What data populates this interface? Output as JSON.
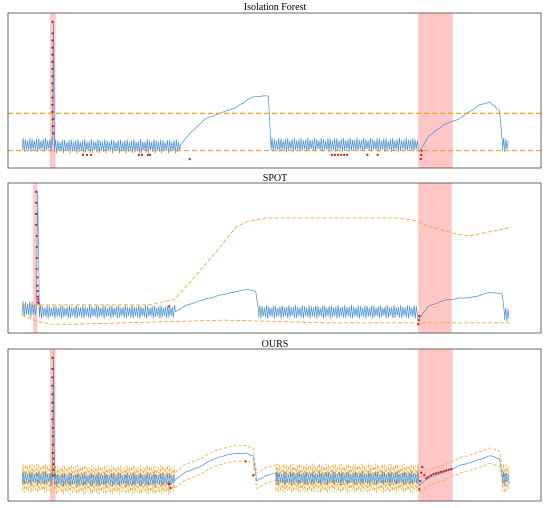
{
  "figure": {
    "titles": [
      "Isolation Forest",
      "SPOT",
      "OURS"
    ]
  },
  "colors": {
    "signal": "#4a90d0",
    "anomaly": "#c0181f",
    "threshold": "#f0a020",
    "highlight": "#ffb3b3",
    "frame": "#444444"
  },
  "chart_data": [
    {
      "type": "line",
      "title": "Isolation Forest",
      "x_range": [
        0,
        1000
      ],
      "y_range": [
        0,
        1
      ],
      "signal_segments": [
        {
          "kind": "osc",
          "x0": 0,
          "x1": 60,
          "base": 0.12,
          "amp": 0.05
        },
        {
          "kind": "spike",
          "x0": 60,
          "x1": 64,
          "base": 0.12,
          "peak": 0.98
        },
        {
          "kind": "osc",
          "x0": 64,
          "x1": 312,
          "base": 0.11,
          "amp": 0.05
        },
        {
          "kind": "ramp",
          "points": [
            [
              312,
              0.12
            ],
            [
              330,
              0.2
            ],
            [
              360,
              0.3
            ],
            [
              390,
              0.34
            ],
            [
              420,
              0.38
            ],
            [
              450,
              0.45
            ],
            [
              470,
              0.46
            ],
            [
              485,
              0.46
            ]
          ]
        },
        {
          "kind": "drop",
          "x0": 485,
          "x1": 490,
          "from": 0.46,
          "to": 0.12
        },
        {
          "kind": "osc",
          "x0": 490,
          "x1": 782,
          "base": 0.12,
          "amp": 0.05
        },
        {
          "kind": "ramp",
          "points": [
            [
              782,
              0.07
            ],
            [
              800,
              0.18
            ],
            [
              830,
              0.26
            ],
            [
              860,
              0.3
            ],
            [
              880,
              0.35
            ],
            [
              900,
              0.4
            ],
            [
              920,
              0.42
            ],
            [
              940,
              0.36
            ]
          ]
        },
        {
          "kind": "drop",
          "x0": 940,
          "x1": 946,
          "from": 0.36,
          "to": 0.12
        },
        {
          "kind": "osc",
          "x0": 946,
          "x1": 958,
          "base": 0.12,
          "amp": 0.05
        }
      ],
      "thresholds": [
        0.34,
        0.08
      ],
      "highlights": [
        [
          55,
          66
        ],
        [
          780,
          848
        ]
      ],
      "anomaly_points": [
        [
          60,
          0.98
        ],
        [
          60,
          0.9
        ],
        [
          60,
          0.85
        ],
        [
          60,
          0.8
        ],
        [
          60,
          0.75
        ],
        [
          60,
          0.7
        ],
        [
          60,
          0.65
        ],
        [
          60,
          0.6
        ],
        [
          60,
          0.55
        ],
        [
          60,
          0.5
        ],
        [
          60,
          0.45
        ],
        [
          60,
          0.4
        ],
        [
          60,
          0.35
        ],
        [
          61,
          0.3
        ],
        [
          61,
          0.25
        ],
        [
          62,
          0.2
        ],
        [
          120,
          0.05
        ],
        [
          128,
          0.05
        ],
        [
          136,
          0.05
        ],
        [
          230,
          0.05
        ],
        [
          236,
          0.05
        ],
        [
          248,
          0.05
        ],
        [
          252,
          0.05
        ],
        [
          330,
          0.02
        ],
        [
          610,
          0.05
        ],
        [
          616,
          0.05
        ],
        [
          622,
          0.05
        ],
        [
          628,
          0.05
        ],
        [
          634,
          0.05
        ],
        [
          640,
          0.05
        ],
        [
          680,
          0.05
        ],
        [
          700,
          0.05
        ],
        [
          785,
          0.02
        ],
        [
          786,
          0.05
        ],
        [
          787,
          0.08
        ]
      ]
    },
    {
      "type": "line",
      "title": "SPOT",
      "x_range": [
        0,
        1000
      ],
      "y_range": [
        0,
        1
      ],
      "signal_segments": [
        {
          "kind": "osc",
          "x0": 0,
          "x1": 28,
          "base": 0.13,
          "amp": 0.06
        },
        {
          "kind": "spike",
          "x0": 28,
          "x1": 34,
          "base": 0.13,
          "peak": 0.98
        },
        {
          "kind": "osc",
          "x0": 34,
          "x1": 302,
          "base": 0.11,
          "amp": 0.05
        },
        {
          "kind": "ramp",
          "points": [
            [
              302,
              0.11
            ],
            [
              320,
              0.15
            ],
            [
              350,
              0.19
            ],
            [
              380,
              0.22
            ],
            [
              410,
              0.25
            ],
            [
              440,
              0.27
            ],
            [
              460,
              0.26
            ]
          ]
        },
        {
          "kind": "drop",
          "x0": 460,
          "x1": 466,
          "from": 0.26,
          "to": 0.11
        },
        {
          "kind": "osc",
          "x0": 466,
          "x1": 780,
          "base": 0.11,
          "amp": 0.05
        },
        {
          "kind": "ramp",
          "points": [
            [
              780,
              0.05
            ],
            [
              800,
              0.15
            ],
            [
              830,
              0.19
            ],
            [
              860,
              0.21
            ],
            [
              890,
              0.22
            ],
            [
              920,
              0.25
            ],
            [
              945,
              0.24
            ]
          ]
        },
        {
          "kind": "drop",
          "x0": 945,
          "x1": 950,
          "from": 0.24,
          "to": 0.09
        },
        {
          "kind": "osc",
          "x0": 950,
          "x1": 960,
          "base": 0.09,
          "amp": 0.05
        }
      ],
      "upper_band": [
        [
          0,
          0.16
        ],
        [
          100,
          0.16
        ],
        [
          250,
          0.16
        ],
        [
          300,
          0.2
        ],
        [
          330,
          0.32
        ],
        [
          360,
          0.45
        ],
        [
          390,
          0.58
        ],
        [
          420,
          0.72
        ],
        [
          440,
          0.76
        ],
        [
          480,
          0.79
        ],
        [
          600,
          0.79
        ],
        [
          740,
          0.79
        ],
        [
          775,
          0.77
        ],
        [
          800,
          0.73
        ],
        [
          830,
          0.7
        ],
        [
          860,
          0.67
        ],
        [
          880,
          0.66
        ],
        [
          920,
          0.69
        ],
        [
          960,
          0.72
        ]
      ],
      "lower_band": [
        [
          0,
          0.09
        ],
        [
          30,
          0.04
        ],
        [
          60,
          0.02
        ],
        [
          100,
          0.02
        ],
        [
          200,
          0.03
        ],
        [
          300,
          0.04
        ],
        [
          400,
          0.05
        ],
        [
          500,
          0.04
        ],
        [
          600,
          0.03
        ],
        [
          700,
          0.03
        ],
        [
          800,
          0.03
        ],
        [
          960,
          0.03
        ]
      ],
      "highlights": [
        [
          22,
          30
        ],
        [
          780,
          846
        ]
      ],
      "anomaly_points": [
        [
          28,
          0.98
        ],
        [
          28,
          0.9
        ],
        [
          28,
          0.82
        ],
        [
          28,
          0.74
        ],
        [
          29,
          0.66
        ],
        [
          29,
          0.58
        ],
        [
          29,
          0.5
        ],
        [
          29,
          0.42
        ],
        [
          30,
          0.36
        ],
        [
          30,
          0.3
        ],
        [
          31,
          0.26
        ],
        [
          31,
          0.22
        ],
        [
          32,
          0.2
        ],
        [
          32,
          0.18
        ],
        [
          33,
          0.17
        ],
        [
          290,
          0.15
        ],
        [
          780,
          0.02
        ],
        [
          781,
          0.05
        ],
        [
          782,
          0.08
        ]
      ]
    },
    {
      "type": "line",
      "title": "OURS",
      "x_range": [
        0,
        1000
      ],
      "y_range": [
        0,
        1
      ],
      "signal_segments": [
        {
          "kind": "osc",
          "x0": 0,
          "x1": 60,
          "base": 0.12,
          "amp": 0.05
        },
        {
          "kind": "spike",
          "x0": 60,
          "x1": 64,
          "base": 0.12,
          "peak": 0.98
        },
        {
          "kind": "osc",
          "x0": 64,
          "x1": 300,
          "base": 0.11,
          "amp": 0.05
        },
        {
          "kind": "ramp",
          "points": [
            [
              300,
              0.1
            ],
            [
              320,
              0.16
            ],
            [
              350,
              0.2
            ],
            [
              380,
              0.26
            ],
            [
              410,
              0.29
            ],
            [
              440,
              0.3
            ],
            [
              455,
              0.28
            ]
          ]
        },
        {
          "kind": "drop",
          "x0": 455,
          "x1": 462,
          "from": 0.28,
          "to": 0.1
        },
        {
          "kind": "ramp",
          "points": [
            [
              462,
              0.1
            ],
            [
              480,
              0.14
            ],
            [
              500,
              0.16
            ]
          ]
        },
        {
          "kind": "osc",
          "x0": 500,
          "x1": 782,
          "base": 0.12,
          "amp": 0.05
        },
        {
          "kind": "ramp",
          "points": [
            [
              782,
              0.07
            ],
            [
              800,
              0.12
            ],
            [
              830,
              0.16
            ],
            [
              860,
              0.21
            ],
            [
              890,
              0.24
            ],
            [
              920,
              0.28
            ],
            [
              940,
              0.26
            ]
          ]
        },
        {
          "kind": "drop",
          "x0": 940,
          "x1": 946,
          "from": 0.26,
          "to": 0.12
        },
        {
          "kind": "osc",
          "x0": 946,
          "x1": 960,
          "base": 0.12,
          "amp": 0.05
        }
      ],
      "band_offset": 0.055,
      "highlights": [
        [
          55,
          66
        ],
        [
          780,
          848
        ]
      ],
      "anomaly_points": [
        [
          60,
          0.98
        ],
        [
          60,
          0.9
        ],
        [
          60,
          0.84
        ],
        [
          60,
          0.78
        ],
        [
          60,
          0.72
        ],
        [
          60,
          0.66
        ],
        [
          60,
          0.6
        ],
        [
          60,
          0.54
        ],
        [
          61,
          0.48
        ],
        [
          61,
          0.42
        ],
        [
          61,
          0.36
        ],
        [
          61,
          0.3
        ],
        [
          62,
          0.26
        ],
        [
          62,
          0.22
        ],
        [
          62,
          0.18
        ],
        [
          62,
          0.14
        ],
        [
          290,
          0.08
        ],
        [
          292,
          0.05
        ],
        [
          440,
          0.24
        ],
        [
          455,
          0.14
        ],
        [
          782,
          0.04
        ],
        [
          784,
          0.1
        ],
        [
          786,
          0.16
        ],
        [
          788,
          0.2
        ],
        [
          792,
          0.14
        ],
        [
          796,
          0.12
        ],
        [
          800,
          0.13
        ],
        [
          805,
          0.14
        ],
        [
          810,
          0.15
        ],
        [
          815,
          0.155
        ],
        [
          820,
          0.16
        ],
        [
          825,
          0.165
        ],
        [
          830,
          0.17
        ],
        [
          835,
          0.175
        ],
        [
          840,
          0.18
        ],
        [
          845,
          0.185
        ]
      ]
    }
  ]
}
